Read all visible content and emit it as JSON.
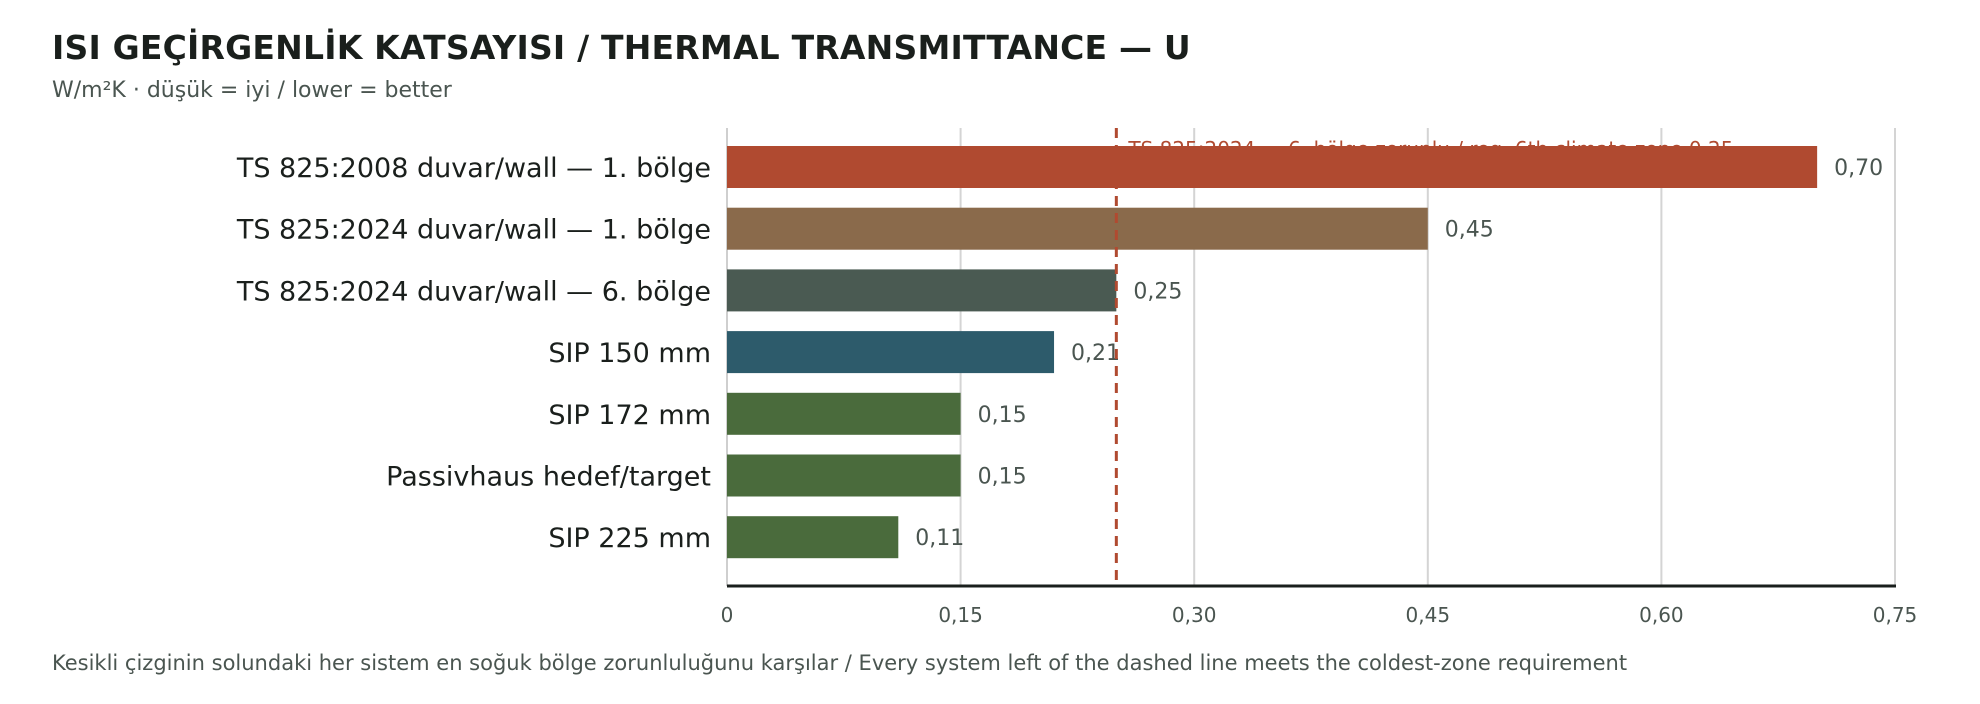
{
  "header": {
    "title": "ISI GEÇİRGENLİK KATSAYISI / THERMAL TRANSMITTANCE — U",
    "subtitle": "W/m²K · düşük = iyi / lower = better"
  },
  "footer": {
    "note": "Kesikli çizginin solundaki her sistem en soğuk bölge zorunluluğunu karşılar / Every system left of the dashed line meets the coldest-zone requirement"
  },
  "chart_data": {
    "type": "bar",
    "orientation": "horizontal",
    "title": "ISI GEÇİRGENLİK KATSAYISI / THERMAL TRANSMITTANCE — U",
    "subtitle": "W/m²K · düşük = iyi / lower = better",
    "xlabel": "",
    "ylabel": "",
    "xlim": [
      0,
      0.75
    ],
    "ticks": [
      0,
      0.15,
      0.3,
      0.45,
      0.6,
      0.75
    ],
    "tick_labels": [
      "0",
      "0,15",
      "0,30",
      "0,45",
      "0,60",
      "0,75"
    ],
    "grid": "vertical",
    "legend": "none",
    "categories": [
      "TS 825:2008 duvar/wall — 1. bölge",
      "TS 825:2024 duvar/wall — 1. bölge",
      "TS 825:2024 duvar/wall — 6. bölge",
      "SIP 150 mm",
      "SIP 172 mm",
      "Passivhaus hedef/target",
      "SIP 225 mm"
    ],
    "values": [
      0.7,
      0.45,
      0.25,
      0.21,
      0.15,
      0.15,
      0.11
    ],
    "value_labels": [
      "0,70",
      "0,45",
      "0,25",
      "0,21",
      "0,15",
      "0,15",
      "0,11"
    ],
    "colors": [
      "#b04a30",
      "#8a6a4b",
      "#4a5a52",
      "#2d5b6b",
      "#4a6b3c",
      "#4a6b3c",
      "#4a6b3c"
    ],
    "reference_line": {
      "value": 0.25,
      "label": "TS 825:2024 — 6. bölge zorunlu / req. 6th climate zone 0,25",
      "color": "#b04a30",
      "style": "dashed"
    }
  }
}
